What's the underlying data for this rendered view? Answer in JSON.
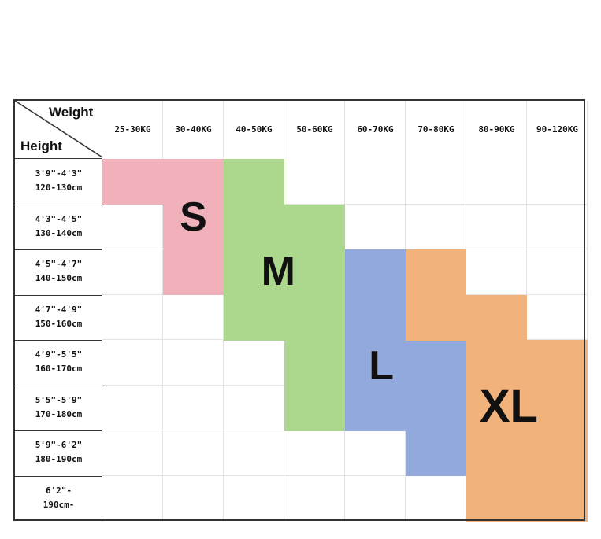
{
  "corner": {
    "weight_label": "Weight",
    "height_label": "Height"
  },
  "weights": [
    "25-30KG",
    "30-40KG",
    "40-50KG",
    "50-60KG",
    "60-70KG",
    "70-80KG",
    "80-90KG",
    "90-120KG"
  ],
  "heights": [
    {
      "imperial": "3'9\"-4'3\"",
      "metric": "120-130cm"
    },
    {
      "imperial": "4'3\"-4'5\"",
      "metric": "130-140cm"
    },
    {
      "imperial": "4'5\"-4'7\"",
      "metric": "140-150cm"
    },
    {
      "imperial": "4'7\"-4'9\"",
      "metric": "150-160cm"
    },
    {
      "imperial": "4'9\"-5'5\"",
      "metric": "160-170cm"
    },
    {
      "imperial": "5'5\"-5'9\"",
      "metric": "170-180cm"
    },
    {
      "imperial": "5'9\"-6'2\"",
      "metric": "180-190cm"
    },
    {
      "imperial": "6'2\"-",
      "metric": "190cm-"
    }
  ],
  "sizes": [
    {
      "label": "S",
      "color": "#f0b1ba",
      "ranges": [
        [
          0,
          0,
          1
        ],
        [
          1,
          1,
          1
        ],
        [
          2,
          1,
          1
        ]
      ]
    },
    {
      "label": "M",
      "color": "#acd88e",
      "ranges": [
        [
          0,
          2,
          2
        ],
        [
          1,
          2,
          3
        ],
        [
          2,
          2,
          3
        ],
        [
          3,
          2,
          3
        ],
        [
          4,
          3,
          3
        ],
        [
          5,
          3,
          3
        ]
      ]
    },
    {
      "label": "L",
      "color": "#91a9dd",
      "ranges": [
        [
          2,
          4,
          4
        ],
        [
          3,
          4,
          4
        ],
        [
          4,
          4,
          5
        ],
        [
          5,
          4,
          5
        ],
        [
          6,
          5,
          5
        ]
      ]
    },
    {
      "label": "XL",
      "color": "#f2b27c",
      "ranges": [
        [
          2,
          5,
          5
        ],
        [
          3,
          5,
          6
        ],
        [
          4,
          6,
          7
        ],
        [
          5,
          6,
          7
        ],
        [
          6,
          6,
          7
        ],
        [
          7,
          6,
          7
        ]
      ]
    }
  ]
}
